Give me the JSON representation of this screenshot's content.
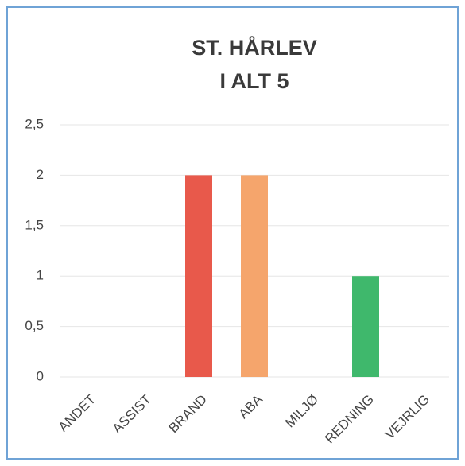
{
  "chart_data": {
    "type": "bar",
    "title": "ST. HÅRLEV",
    "subtitle": "I ALT 5",
    "categories": [
      "ANDET",
      "ASSIST",
      "BRAND",
      "ABA",
      "MILJØ",
      "REDNING",
      "VEJRLIG"
    ],
    "values": [
      0,
      0,
      2,
      2,
      0,
      1,
      0
    ],
    "colors": [
      null,
      null,
      "#e8594b",
      "#f5a56c",
      null,
      "#3fb86c",
      null
    ],
    "ylim": [
      0,
      2.5
    ],
    "yticks": [
      0,
      {
        "value": 0.5,
        "label": "0,5"
      },
      1,
      {
        "value": 1.5,
        "label": "1,5"
      },
      2,
      {
        "value": 2.5,
        "label": "2,5"
      }
    ],
    "grid": true
  }
}
